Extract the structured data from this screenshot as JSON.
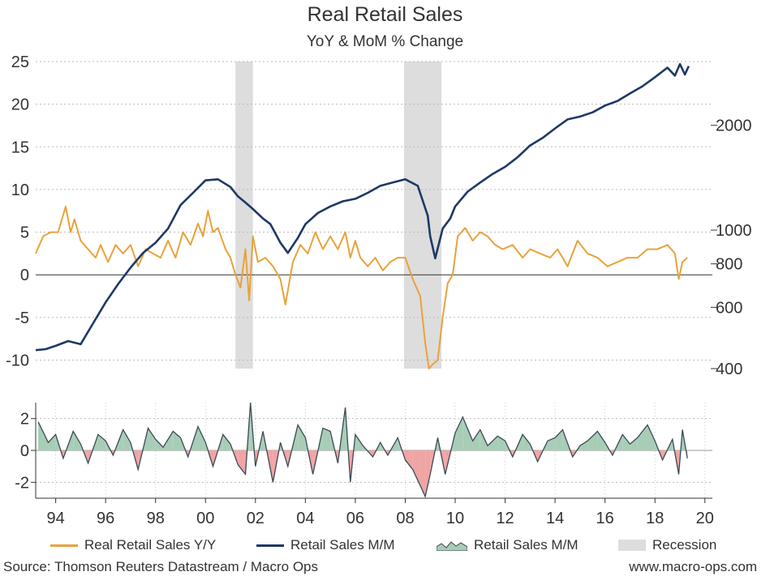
{
  "chart_data": [
    {
      "type": "line",
      "title": "Real Retail Sales",
      "subtitle": "YoY & MoM % Change",
      "left_axis": {
        "ylim": [
          -11,
          25
        ],
        "ticks": [
          25,
          20,
          15,
          10,
          5,
          0,
          -5,
          -10
        ],
        "tick_labels": [
          "25",
          "20",
          "15",
          "10",
          "5",
          "0",
          "-5",
          "-10"
        ]
      },
      "right_axis": {
        "scale": "log",
        "ylim": [
          400,
          3050
        ],
        "ticks": [
          2000,
          1000,
          800,
          600,
          400
        ],
        "tick_labels": [
          "2000",
          "1000",
          "800",
          "600",
          "400"
        ]
      },
      "grid": true,
      "recessions": [
        [
          2001.2,
          2001.9
        ],
        [
          2007.95,
          2009.45
        ]
      ],
      "series": [
        {
          "name": "Real Retail Sales Y/Y",
          "axis": "left",
          "color": "#e9a23b",
          "x": [
            1993.2,
            1993.5,
            1993.8,
            1994.1,
            1994.4,
            1994.6,
            1994.75,
            1995.0,
            1995.3,
            1995.6,
            1995.8,
            1996.1,
            1996.4,
            1996.7,
            1997.0,
            1997.3,
            1997.6,
            1997.9,
            1998.2,
            1998.5,
            1998.8,
            1999.1,
            1999.4,
            1999.7,
            1999.9,
            2000.1,
            2000.3,
            2000.5,
            2000.8,
            2001.0,
            2001.2,
            2001.4,
            2001.6,
            2001.75,
            2001.9,
            2002.1,
            2002.4,
            2002.7,
            2003.0,
            2003.2,
            2003.5,
            2003.8,
            2004.1,
            2004.4,
            2004.7,
            2005.0,
            2005.3,
            2005.6,
            2005.8,
            2006.0,
            2006.2,
            2006.5,
            2006.8,
            2007.1,
            2007.4,
            2007.7,
            2008.0,
            2008.3,
            2008.6,
            2008.8,
            2008.95,
            2009.1,
            2009.3,
            2009.5,
            2009.7,
            2009.9,
            2010.1,
            2010.4,
            2010.7,
            2011.0,
            2011.3,
            2011.6,
            2011.9,
            2012.3,
            2012.7,
            2013.0,
            2013.4,
            2013.8,
            2014.1,
            2014.5,
            2014.9,
            2015.3,
            2015.7,
            2016.1,
            2016.5,
            2016.9,
            2017.3,
            2017.7,
            2018.1,
            2018.5,
            2018.8,
            2018.95,
            2019.1,
            2019.3
          ],
          "values": [
            2.5,
            4.5,
            5.0,
            5.0,
            8.0,
            5.0,
            6.5,
            4.0,
            3.0,
            2.0,
            3.5,
            1.5,
            3.5,
            2.5,
            3.5,
            1.0,
            3.0,
            2.5,
            2.0,
            4.0,
            2.0,
            5.0,
            3.5,
            6.0,
            4.5,
            7.5,
            5.0,
            5.5,
            3.0,
            2.0,
            0.0,
            -1.5,
            3.0,
            -3.0,
            4.5,
            1.5,
            2.0,
            1.0,
            -0.5,
            -3.5,
            1.5,
            3.5,
            2.5,
            5.0,
            3.0,
            4.5,
            3.0,
            5.0,
            2.0,
            4.0,
            2.0,
            1.0,
            2.0,
            0.5,
            1.5,
            2.0,
            2.0,
            -0.5,
            -2.5,
            -8.0,
            -11.0,
            -10.5,
            -10.0,
            -5.0,
            -1.0,
            0.0,
            4.5,
            5.5,
            4.0,
            5.0,
            4.5,
            3.5,
            3.0,
            3.5,
            2.0,
            3.0,
            2.5,
            2.0,
            3.0,
            1.0,
            4.0,
            2.5,
            2.0,
            1.0,
            1.5,
            2.0,
            2.0,
            3.0,
            3.0,
            3.5,
            2.5,
            -0.5,
            1.5,
            2.0
          ]
        },
        {
          "name": "Retail Sales M/M",
          "axis": "right",
          "color": "#1d3965",
          "x": [
            1993.2,
            1993.6,
            1994.0,
            1994.5,
            1995.0,
            1995.5,
            1996.0,
            1996.5,
            1997.0,
            1997.5,
            1998.0,
            1998.5,
            1999.0,
            1999.5,
            2000.0,
            2000.5,
            2001.0,
            2001.3,
            2001.6,
            2001.9,
            2002.3,
            2002.6,
            2003.0,
            2003.3,
            2003.7,
            2004.0,
            2004.5,
            2005.0,
            2005.5,
            2006.0,
            2006.5,
            2007.0,
            2007.5,
            2008.0,
            2008.5,
            2008.9,
            2009.0,
            2009.2,
            2009.5,
            2009.8,
            2010.0,
            2010.5,
            2011.0,
            2011.5,
            2012.0,
            2012.5,
            2013.0,
            2013.5,
            2014.0,
            2014.5,
            2015.0,
            2015.5,
            2016.0,
            2016.5,
            2017.0,
            2017.5,
            2018.0,
            2018.5,
            2018.8,
            2019.0,
            2019.2,
            2019.35
          ],
          "values": [
            452,
            455,
            465,
            480,
            470,
            540,
            620,
            700,
            780,
            860,
            920,
            1010,
            1180,
            1280,
            1390,
            1400,
            1330,
            1250,
            1200,
            1150,
            1080,
            1040,
            920,
            860,
            950,
            1040,
            1120,
            1170,
            1210,
            1230,
            1280,
            1340,
            1370,
            1400,
            1340,
            1100,
            960,
            830,
            1010,
            1080,
            1170,
            1290,
            1370,
            1450,
            1520,
            1620,
            1750,
            1840,
            1960,
            2080,
            2120,
            2180,
            2280,
            2350,
            2470,
            2590,
            2750,
            2930,
            2780,
            3000,
            2800,
            2960
          ]
        }
      ]
    },
    {
      "type": "area",
      "name": "Retail Sales M/M",
      "ylim": [
        -3,
        3
      ],
      "ticks": [
        2,
        0,
        -2
      ],
      "tick_labels": [
        "2",
        "0",
        "-2"
      ],
      "x_ticks": [
        1994,
        1996,
        1998,
        2000,
        2002,
        2004,
        2006,
        2008,
        2010,
        2012,
        2014,
        2016,
        2018,
        2020
      ],
      "x_tick_labels": [
        "94",
        "96",
        "98",
        "00",
        "02",
        "04",
        "06",
        "08",
        "10",
        "12",
        "14",
        "16",
        "18",
        "20"
      ],
      "xlim": [
        1993.2,
        2020.3
      ],
      "positive_color": "#a8cdb7",
      "negative_color": "#f0a4a4",
      "x": [
        1993.3,
        1993.7,
        1994.0,
        1994.3,
        1994.7,
        1995.0,
        1995.3,
        1995.7,
        1996.0,
        1996.3,
        1996.7,
        1997.0,
        1997.3,
        1997.7,
        1998.0,
        1998.3,
        1998.7,
        1999.0,
        1999.3,
        1999.7,
        2000.0,
        2000.3,
        2000.7,
        2001.0,
        2001.3,
        2001.6,
        2001.8,
        2002.0,
        2002.3,
        2002.7,
        2003.0,
        2003.3,
        2003.7,
        2004.0,
        2004.3,
        2004.7,
        2005.0,
        2005.3,
        2005.6,
        2005.8,
        2006.0,
        2006.3,
        2006.7,
        2007.0,
        2007.3,
        2007.7,
        2008.0,
        2008.3,
        2008.6,
        2008.8,
        2009.0,
        2009.3,
        2009.6,
        2010.0,
        2010.3,
        2010.7,
        2011.0,
        2011.3,
        2011.7,
        2012.0,
        2012.3,
        2012.7,
        2013.0,
        2013.3,
        2013.7,
        2014.0,
        2014.3,
        2014.7,
        2015.0,
        2015.3,
        2015.7,
        2016.0,
        2016.3,
        2016.7,
        2017.0,
        2017.3,
        2017.7,
        2018.0,
        2018.3,
        2018.7,
        2018.95,
        2019.1,
        2019.3
      ],
      "values": [
        1.8,
        0.5,
        1.0,
        -0.5,
        1.2,
        0.4,
        -0.8,
        1.0,
        0.6,
        -0.3,
        1.3,
        0.5,
        -1.2,
        1.4,
        0.7,
        0.2,
        1.2,
        0.8,
        -0.4,
        1.5,
        0.5,
        -1.0,
        1.0,
        0.4,
        -0.9,
        -1.5,
        3.0,
        -1.0,
        1.2,
        -2.0,
        0.5,
        -1.0,
        1.6,
        0.8,
        -1.5,
        1.4,
        1.2,
        -0.8,
        2.7,
        -2.0,
        1.0,
        0.3,
        -0.4,
        0.5,
        -0.3,
        0.8,
        -0.6,
        -1.2,
        -2.2,
        -2.9,
        -1.5,
        0.8,
        -1.5,
        1.1,
        2.1,
        0.6,
        1.3,
        0.3,
        0.9,
        0.6,
        -0.4,
        1.0,
        0.4,
        -0.7,
        0.6,
        0.8,
        1.3,
        -0.4,
        0.3,
        0.6,
        1.2,
        0.5,
        -0.3,
        1.0,
        0.4,
        0.8,
        1.6,
        0.6,
        -0.6,
        0.7,
        -1.5,
        1.3,
        -0.5
      ]
    }
  ],
  "legend": [
    {
      "label": "Real Retail Sales Y/Y",
      "icon": "line-swatch",
      "color": "#e9a23b"
    },
    {
      "label": "Retail Sales M/M",
      "icon": "line-swatch",
      "color": "#1d3965"
    },
    {
      "label": "Retail Sales M/M",
      "icon": "area-swatch",
      "color": "#a8cdb7"
    },
    {
      "label": "Recession",
      "icon": "box-swatch",
      "color": "#dddddd"
    }
  ],
  "footer": {
    "source": "Source: Thomson Reuters Datastream / Macro Ops",
    "website": "www.macro-ops.com"
  }
}
